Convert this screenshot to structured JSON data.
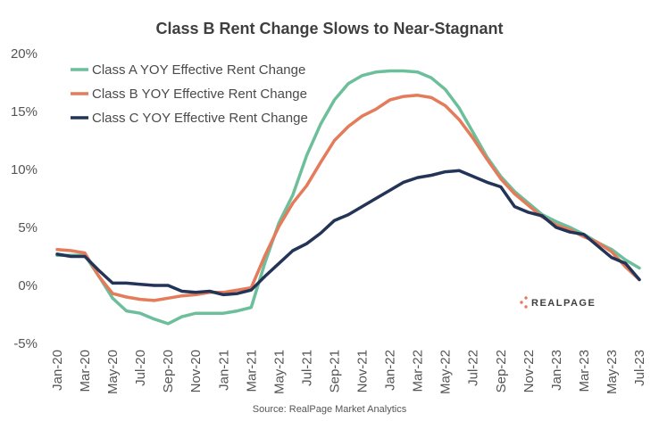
{
  "chart_data": {
    "type": "line",
    "title": "Class B Rent Change Slows to Near-Stagnant",
    "xlabel": "",
    "ylabel": "",
    "source": "Source: RealPage Market Analytics",
    "brand": "REALPAGE",
    "ylim": [
      -5,
      20
    ],
    "y_ticks": [
      "-5%",
      "0%",
      "5%",
      "10%",
      "15%",
      "20%"
    ],
    "y_tick_values": [
      -5,
      0,
      5,
      10,
      15,
      20
    ],
    "x": [
      "Jan-20",
      "Feb-20",
      "Mar-20",
      "Apr-20",
      "May-20",
      "Jun-20",
      "Jul-20",
      "Aug-20",
      "Sep-20",
      "Oct-20",
      "Nov-20",
      "Dec-20",
      "Jan-21",
      "Feb-21",
      "Mar-21",
      "Apr-21",
      "May-21",
      "Jun-21",
      "Jul-21",
      "Aug-21",
      "Sep-21",
      "Oct-21",
      "Nov-21",
      "Dec-21",
      "Jan-22",
      "Feb-22",
      "Mar-22",
      "Apr-22",
      "May-22",
      "Jun-22",
      "Jul-22",
      "Aug-22",
      "Sep-22",
      "Oct-22",
      "Nov-22",
      "Dec-22",
      "Jan-23",
      "Feb-23",
      "Mar-23",
      "Apr-23",
      "May-23",
      "Jun-23",
      "Jul-23"
    ],
    "x_tick_labels": [
      "Jan-20",
      "Mar-20",
      "May-20",
      "Jul-20",
      "Sep-20",
      "Nov-20",
      "Jan-21",
      "Mar-21",
      "May-21",
      "Jul-21",
      "Sep-21",
      "Nov-21",
      "Jan-22",
      "Mar-22",
      "May-22",
      "Jul-22",
      "Sep-22",
      "Nov-22",
      "Jan-23",
      "Mar-23",
      "May-23",
      "Jul-23"
    ],
    "grid": false,
    "legend_position": "top-left",
    "series": [
      {
        "name": "Class A YOY Effective Rent Change",
        "color": "#6dbf9c",
        "values": [
          2.6,
          2.6,
          2.6,
          0.8,
          -1.1,
          -2.2,
          -2.4,
          -2.9,
          -3.3,
          -2.7,
          -2.4,
          -2.4,
          -2.4,
          -2.2,
          -1.9,
          2.0,
          5.4,
          7.8,
          11.2,
          13.9,
          16.0,
          17.4,
          18.1,
          18.4,
          18.5,
          18.5,
          18.4,
          17.9,
          16.9,
          15.3,
          13.2,
          11.1,
          9.4,
          8.1,
          7.1,
          6.1,
          5.5,
          5.0,
          4.4,
          3.7,
          3.1,
          2.2,
          1.5
        ]
      },
      {
        "name": "Class B YOY Effective Rent Change",
        "color": "#e47b5a",
        "values": [
          3.1,
          3.0,
          2.8,
          0.8,
          -0.7,
          -1.0,
          -1.2,
          -1.3,
          -1.1,
          -0.9,
          -0.8,
          -0.6,
          -0.6,
          -0.4,
          -0.2,
          2.6,
          5.1,
          7.1,
          8.6,
          10.6,
          12.5,
          13.7,
          14.6,
          15.2,
          16.0,
          16.3,
          16.4,
          16.2,
          15.5,
          14.3,
          12.7,
          10.9,
          9.2,
          7.9,
          6.9,
          5.9,
          5.2,
          4.8,
          4.2,
          3.7,
          2.9,
          1.6,
          0.5
        ]
      },
      {
        "name": "Class C YOY Effective Rent Change",
        "color": "#233457",
        "values": [
          2.7,
          2.5,
          2.5,
          1.3,
          0.2,
          0.2,
          0.1,
          0.0,
          0.0,
          -0.5,
          -0.6,
          -0.5,
          -0.8,
          -0.7,
          -0.4,
          0.8,
          1.9,
          3.0,
          3.6,
          4.5,
          5.6,
          6.1,
          6.8,
          7.5,
          8.2,
          8.9,
          9.3,
          9.5,
          9.8,
          9.9,
          9.4,
          8.9,
          8.5,
          6.8,
          6.3,
          6.0,
          5.0,
          4.6,
          4.4,
          3.4,
          2.4,
          1.9,
          0.5
        ]
      }
    ]
  }
}
